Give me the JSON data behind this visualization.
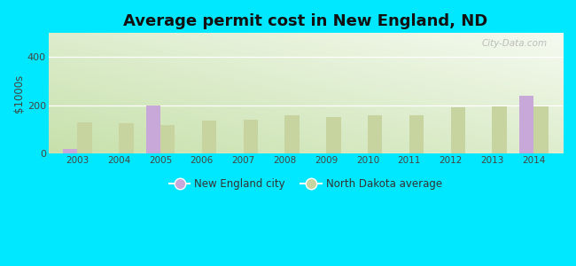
{
  "title": "Average permit cost in New England, ND",
  "ylabel": "$1000s",
  "years": [
    2003,
    2004,
    2005,
    2006,
    2007,
    2008,
    2009,
    2010,
    2011,
    2012,
    2013,
    2014
  ],
  "city_values": [
    20,
    0,
    200,
    0,
    0,
    0,
    0,
    0,
    0,
    0,
    0,
    240
  ],
  "nd_values": [
    130,
    127,
    120,
    135,
    140,
    157,
    153,
    158,
    160,
    192,
    197,
    197
  ],
  "city_color": "#c8a8d8",
  "nd_color": "#c8d4a0",
  "background_outer": "#00e8ff",
  "ylim": [
    0,
    500
  ],
  "yticks": [
    0,
    200,
    400
  ],
  "title_fontsize": 13,
  "legend_city": "New England city",
  "legend_nd": "North Dakota average",
  "watermark": "City-Data.com"
}
